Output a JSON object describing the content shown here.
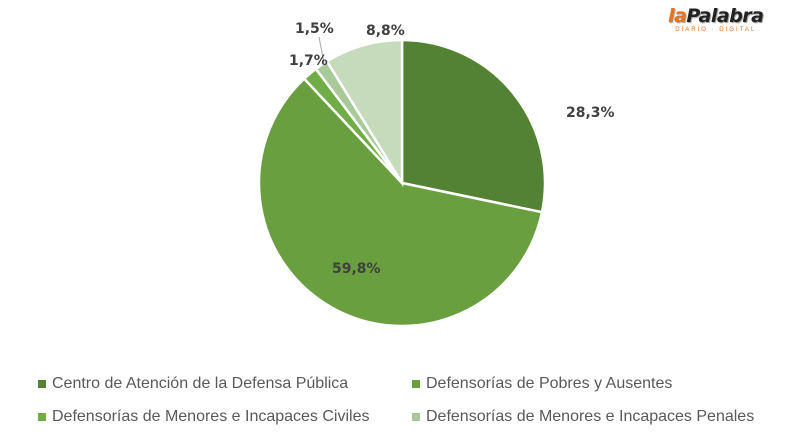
{
  "logo": {
    "text_la": "la",
    "text_main": "Palabra",
    "subtitle": "DIARIO · DIGITAL"
  },
  "chart_data": {
    "type": "pie",
    "start_angle": "12 o'clock, clockwise",
    "legend_position": "bottom",
    "categories": [
      "Centro de Atención de la Defensa Pública",
      "Defensorías de Pobres y Ausentes",
      "Defensorías de Menores e Incapaces Civiles",
      "Defensorías de Menores e Incapaces Penales",
      ""
    ],
    "values": [
      28.3,
      59.8,
      1.7,
      1.5,
      8.8
    ],
    "data_labels": [
      "28,3%",
      "59,8%",
      "1,7%",
      "1,5%",
      "8,8%"
    ],
    "colors": [
      "#548235",
      "#6a9f3f",
      "#70ad47",
      "#a9c99a",
      "#c6dbbb"
    ]
  }
}
